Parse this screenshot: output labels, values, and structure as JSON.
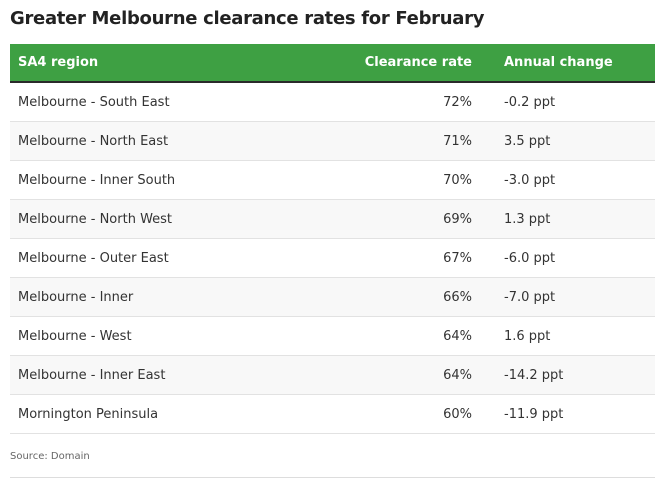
{
  "title": "Greater Melbourne clearance rates for February",
  "table": {
    "header": [
      "SA4 region",
      "Clearance rate",
      "Annual change"
    ],
    "rows": [
      [
        "Melbourne - South East",
        "72%",
        "-0.2 ppt"
      ],
      [
        "Melbourne - North East",
        "71%",
        "3.5 ppt"
      ],
      [
        "Melbourne - Inner South",
        "70%",
        "-3.0 ppt"
      ],
      [
        "Melbourne - North West",
        "69%",
        "1.3 ppt"
      ],
      [
        "Melbourne - Outer East",
        "67%",
        "-6.0 ppt"
      ],
      [
        "Melbourne - Inner",
        "66%",
        "-7.0 ppt"
      ],
      [
        "Melbourne - West",
        "64%",
        "1.6 ppt"
      ],
      [
        "Melbourne - Inner East",
        "64%",
        "-14.2 ppt"
      ],
      [
        "Mornington Peninsula",
        "60%",
        "-11.9 ppt"
      ]
    ]
  },
  "source": "Source: Domain"
}
